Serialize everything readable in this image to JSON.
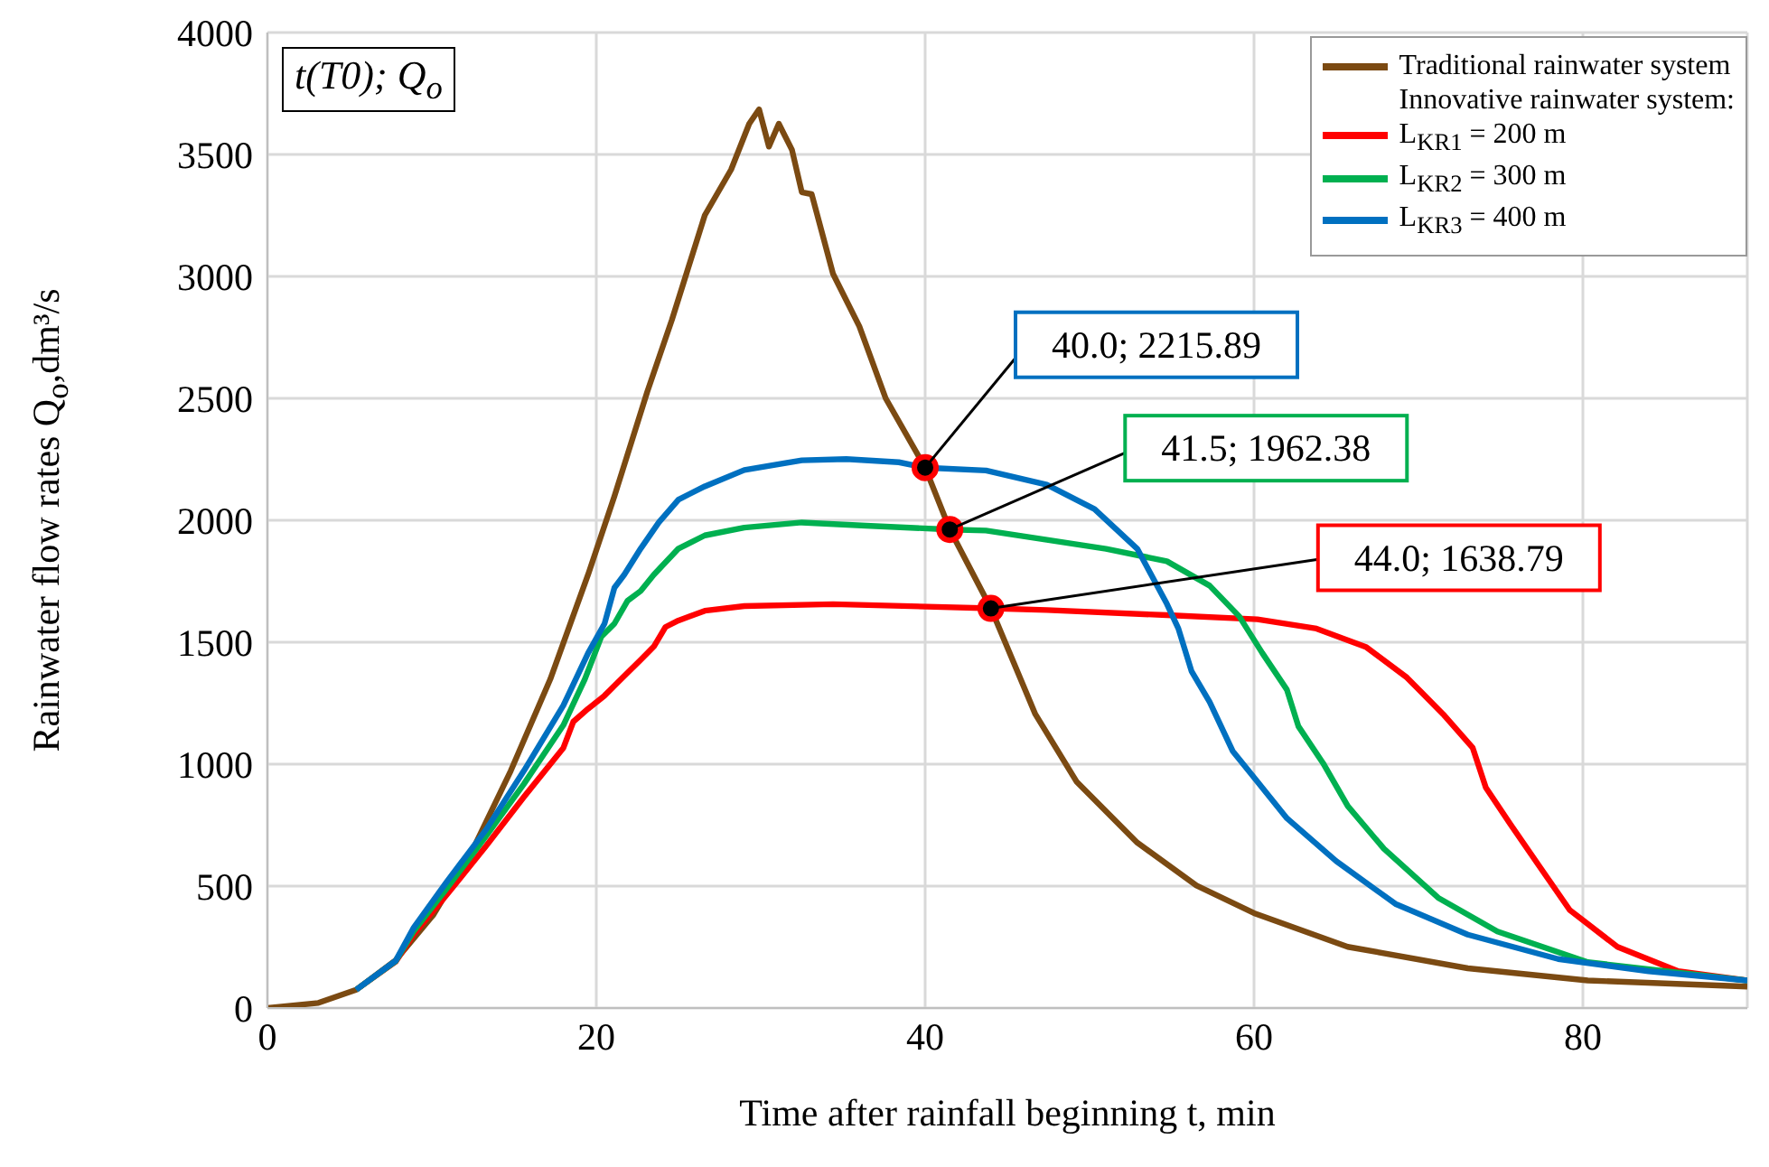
{
  "chart_data": {
    "type": "line",
    "xlabel": "Time after rainfall beginning t, min",
    "ylabel": "Rainwater flow rates Q$_{o}$,dm³/s",
    "legend_title": "Innovative rainwater system:",
    "xlim": [
      0,
      90
    ],
    "ylim": [
      0,
      4000
    ],
    "xticks": [
      0,
      20,
      40,
      60,
      80
    ],
    "yticks": [
      0,
      500,
      1000,
      1500,
      2000,
      2500,
      3000,
      3500,
      4000
    ],
    "grid": true,
    "legend": "top right",
    "marker": "none",
    "line_style": "solid",
    "annotations": [
      "t(T0); Q$_{o}$",
      {
        "text": "40.0; 2215.89",
        "x": 40.0,
        "y": 2215.89
      },
      {
        "text": "41.5; 1962.38",
        "x": 41.5,
        "y": 1962.38
      },
      {
        "text": "44.0; 1638.79",
        "x": 44.0,
        "y": 1638.79
      }
    ],
    "series": [
      {
        "name": "Traditional rainwater system",
        "color": "#7b4a12",
        "x": [
          0,
          3.1,
          5.4,
          7.8,
          10.1,
          12.5,
          14.8,
          17.2,
          19.5,
          21.1,
          23.1,
          24.6,
          26.6,
          28.2,
          29.3,
          29.9,
          30.5,
          31.1,
          31.9,
          32.5,
          33.1,
          34.4,
          36.0,
          37.6,
          40.0,
          41.5,
          44.0,
          46.7,
          49.2,
          52.9,
          56.5,
          60.0,
          65.7,
          73.0,
          80.3,
          90.0
        ],
        "values": [
          0,
          21,
          75,
          196,
          383,
          651,
          973,
          1348,
          1777,
          2098,
          2527,
          2822,
          3251,
          3438,
          3626,
          3685,
          3532,
          3626,
          3519,
          3345,
          3337,
          3010,
          2795,
          2500,
          2216,
          1962,
          1639,
          1205,
          929,
          678,
          502,
          389,
          251,
          163,
          113,
          88
        ]
      },
      {
        "name": "L$_{KR1}$ = 200 m",
        "color": "#ff0000",
        "x": [
          5.4,
          7.8,
          8.9,
          10.9,
          13.3,
          15.6,
          18.0,
          18.6,
          19.5,
          20.5,
          21.5,
          22.7,
          23.5,
          24.2,
          25.0,
          26.6,
          29.0,
          34.4,
          44.0,
          47.4,
          54.7,
          60.2,
          63.8,
          66.8,
          69.3,
          71.5,
          73.3,
          74.1,
          75.6,
          77.4,
          79.2,
          82.1,
          85.8,
          90.0
        ],
        "values": [
          75,
          190,
          303,
          464,
          665,
          866,
          1067,
          1174,
          1227,
          1281,
          1348,
          1428,
          1482,
          1562,
          1589,
          1629,
          1648,
          1656,
          1639,
          1632,
          1611,
          1594,
          1556,
          1481,
          1355,
          1205,
          1067,
          904,
          753,
          577,
          402,
          251,
          151,
          113
        ]
      },
      {
        "name": "L$_{KR2}$ = 300 m",
        "color": "#00b050",
        "x": [
          5.4,
          7.8,
          8.9,
          10.9,
          13.3,
          15.6,
          18.0,
          19.3,
          20.3,
          21.1,
          21.9,
          22.7,
          23.5,
          25.0,
          26.6,
          29.0,
          32.5,
          36.4,
          41.5,
          43.7,
          47.4,
          51.0,
          54.7,
          57.3,
          59.1,
          60.5,
          62.0,
          62.7,
          64.2,
          65.7,
          67.9,
          71.2,
          74.8,
          80.3,
          90.0
        ],
        "values": [
          75,
          192,
          316,
          490,
          705,
          919,
          1160,
          1348,
          1522,
          1576,
          1670,
          1710,
          1777,
          1884,
          1938,
          1970,
          1991,
          1978,
          1962,
          1958,
          1920,
          1883,
          1832,
          1732,
          1606,
          1456,
          1305,
          1155,
          1004,
          828,
          653,
          452,
          314,
          188,
          113
        ]
      },
      {
        "name": "L$_{KR3}$ = 400 m",
        "color": "#0070c0",
        "x": [
          5.4,
          7.8,
          8.9,
          10.9,
          13.3,
          15.6,
          18.0,
          19.5,
          20.5,
          21.1,
          21.7,
          22.7,
          23.8,
          25.0,
          26.6,
          29.0,
          32.5,
          35.2,
          38.4,
          40.0,
          43.7,
          47.4,
          50.3,
          52.9,
          54.7,
          55.4,
          56.2,
          57.3,
          58.7,
          60.2,
          62.0,
          65.0,
          68.6,
          73.0,
          78.5,
          84.0,
          90.0
        ],
        "values": [
          75,
          194,
          330,
          517,
          732,
          973,
          1241,
          1455,
          1576,
          1723,
          1777,
          1884,
          1991,
          2085,
          2139,
          2206,
          2246,
          2251,
          2238,
          2216,
          2204,
          2146,
          2046,
          1883,
          1657,
          1556,
          1381,
          1255,
          1054,
          929,
          778,
          602,
          427,
          301,
          201,
          151,
          113
        ]
      }
    ]
  }
}
